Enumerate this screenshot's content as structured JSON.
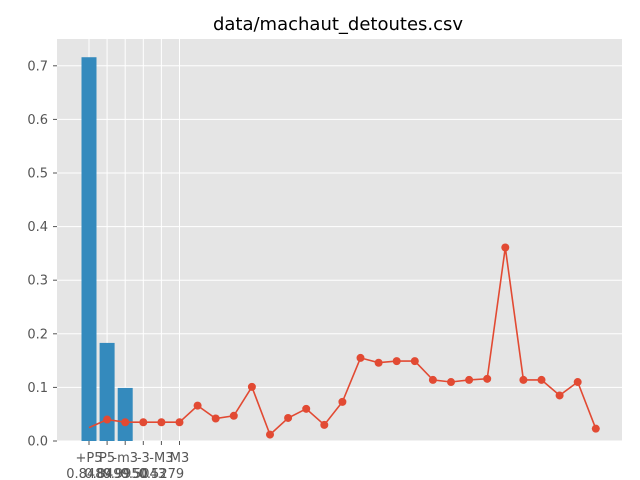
{
  "chart_data": {
    "type": "bar",
    "title": "data/machaut_detoutes.csv",
    "xlabel": "",
    "ylabel": "",
    "ylim": [
      0,
      0.75
    ],
    "yticks": [
      "0.0",
      "0.1",
      "0.2",
      "0.3",
      "0.4",
      "0.5",
      "0.6",
      "0.7"
    ],
    "grid": true,
    "categories": [
      {
        "line1": "+P5",
        "line2": "0.8489"
      },
      {
        "line1": "P5",
        "line2": "0.8499"
      },
      {
        "line1": "-m3",
        "line2": "0.9950"
      },
      {
        "line1": "-3",
        "line2": "0.5043"
      },
      {
        "line1": "-M3",
        "line2": "0.5279"
      },
      {
        "line1": "M3",
        "line2": ""
      }
    ],
    "bars": {
      "color": "#348abd",
      "values": [
        0.716,
        0.183,
        0.099,
        0.0,
        0.0,
        0.0
      ]
    },
    "line_series": {
      "color": "#e24a33",
      "values": [
        0.025,
        0.04,
        0.035,
        0.035,
        0.035,
        0.035,
        0.066,
        0.042,
        0.047,
        0.101,
        0.012,
        0.043,
        0.06,
        0.03,
        0.073,
        0.155,
        0.146,
        0.149,
        0.149,
        0.114,
        0.11,
        0.114,
        0.116,
        0.361,
        0.114,
        0.114,
        0.085,
        0.11,
        0.023
      ]
    }
  }
}
